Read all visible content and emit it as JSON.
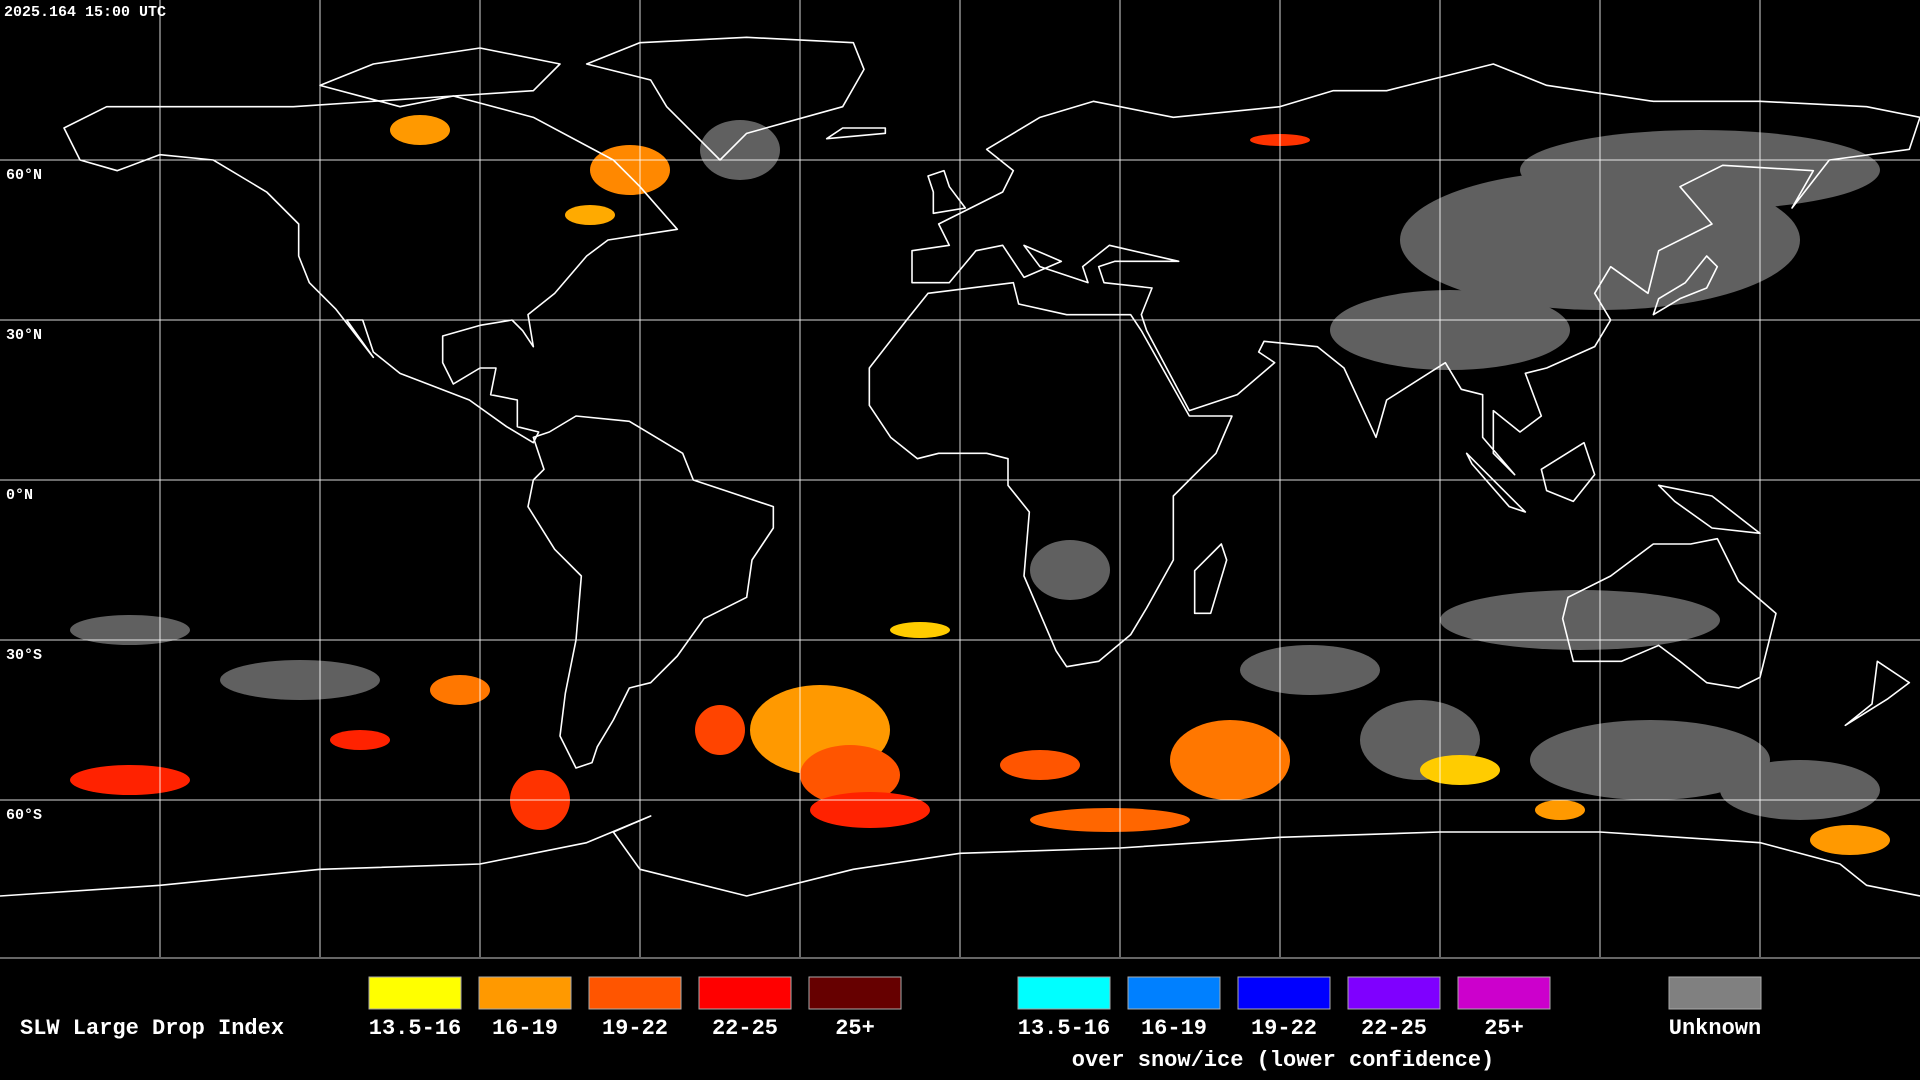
{
  "header": {
    "timestamp": "2025.164 15:00 UTC"
  },
  "map": {
    "latitude_labels": [
      "60°N",
      "30°N",
      "0°N",
      "30°S",
      "60°S"
    ]
  },
  "legend": {
    "title": "SLW Large Drop Index",
    "groups": [
      {
        "items": [
          {
            "label": "13.5-16",
            "color": "#ffff00"
          },
          {
            "label": "16-19",
            "color": "#ff9900"
          },
          {
            "label": "19-22",
            "color": "#ff5500"
          },
          {
            "label": "22-25",
            "color": "#ff0000"
          },
          {
            "label": "25+",
            "color": "#660000"
          }
        ]
      },
      {
        "items": [
          {
            "label": "13.5-16",
            "color": "#00ffff"
          },
          {
            "label": "16-19",
            "color": "#0080ff"
          },
          {
            "label": "19-22",
            "color": "#0000ff"
          },
          {
            "label": "22-25",
            "color": "#7f00ff"
          },
          {
            "label": "25+",
            "color": "#cc00cc"
          }
        ],
        "note": "over snow/ice (lower confidence)"
      },
      {
        "items": [
          {
            "label": "Unknown",
            "color": "#808080"
          }
        ]
      }
    ]
  }
}
